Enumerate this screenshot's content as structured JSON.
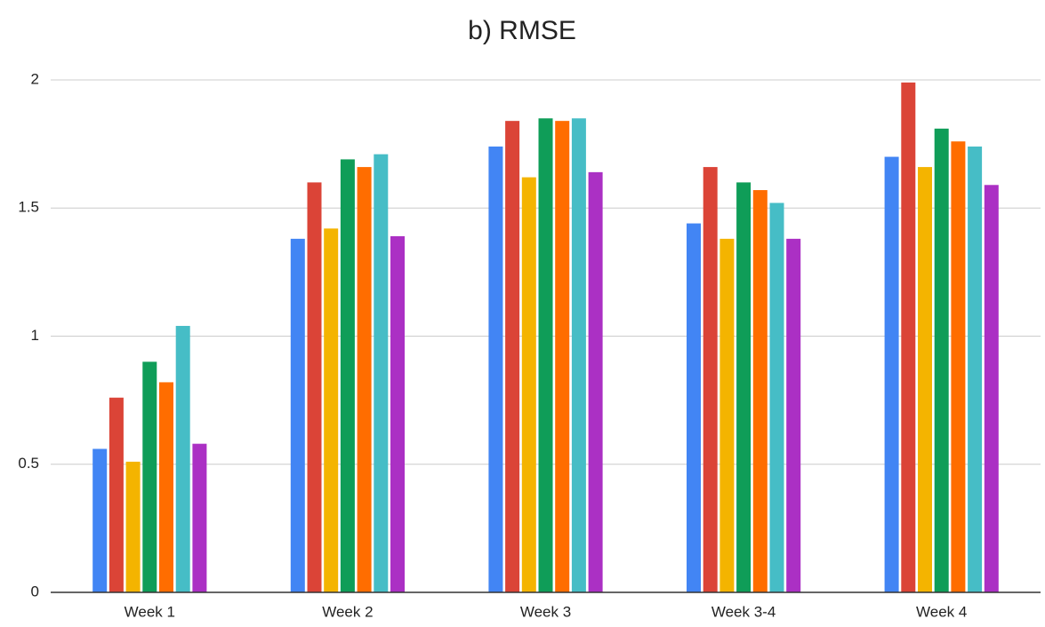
{
  "chart_data": {
    "type": "bar",
    "title": "b) RMSE",
    "categories": [
      "Week 1",
      "Week 2",
      "Week 3",
      "Week 3-4",
      "Week 4"
    ],
    "series": [
      {
        "color": "#4285f4",
        "values": [
          0.56,
          1.38,
          1.74,
          1.44,
          1.7
        ]
      },
      {
        "color": "#db4437",
        "values": [
          0.76,
          1.6,
          1.84,
          1.66,
          1.99
        ]
      },
      {
        "color": "#f4b400",
        "values": [
          0.51,
          1.42,
          1.62,
          1.38,
          1.66
        ]
      },
      {
        "color": "#0f9d58",
        "values": [
          0.9,
          1.69,
          1.85,
          1.6,
          1.81
        ]
      },
      {
        "color": "#ff6d00",
        "values": [
          0.82,
          1.66,
          1.84,
          1.57,
          1.76
        ]
      },
      {
        "color": "#46bdc6",
        "values": [
          1.04,
          1.71,
          1.85,
          1.52,
          1.74
        ]
      },
      {
        "color": "#ab30c4",
        "values": [
          0.58,
          1.39,
          1.64,
          1.38,
          1.59
        ]
      }
    ],
    "ylim": [
      0,
      2
    ],
    "yticks": [
      0,
      0.5,
      1,
      1.5,
      2
    ],
    "grid": true
  }
}
